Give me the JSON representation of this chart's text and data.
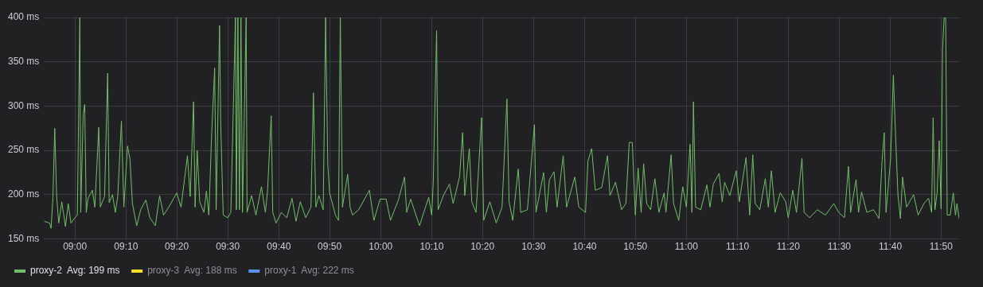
{
  "chart_data": {
    "type": "line",
    "legend": "bottom left",
    "grid": true,
    "marker": "none",
    "line_style": "solid",
    "xlim": [
      8.899,
      11.892
    ],
    "ylim": [
      150,
      400
    ],
    "xticks": [
      {
        "value": 9,
        "label": "09:00"
      },
      {
        "value": 9.167,
        "label": "09:10"
      },
      {
        "value": 9.333,
        "label": "09:20"
      },
      {
        "value": 9.5,
        "label": "09:30"
      },
      {
        "value": 9.667,
        "label": "09:40"
      },
      {
        "value": 9.833,
        "label": "09:50"
      },
      {
        "value": 10,
        "label": "10:00"
      },
      {
        "value": 10.167,
        "label": "10:10"
      },
      {
        "value": 10.333,
        "label": "10:20"
      },
      {
        "value": 10.5,
        "label": "10:30"
      },
      {
        "value": 10.667,
        "label": "10:40"
      },
      {
        "value": 10.833,
        "label": "10:50"
      },
      {
        "value": 11,
        "label": "11:00"
      },
      {
        "value": 11.167,
        "label": "11:10"
      },
      {
        "value": 11.333,
        "label": "11:20"
      },
      {
        "value": 11.5,
        "label": "11:30"
      },
      {
        "value": 11.667,
        "label": "11:40"
      },
      {
        "value": 11.833,
        "label": "11:50"
      }
    ],
    "yticks": [
      {
        "value": 150,
        "label": "150 ms"
      },
      {
        "value": 200,
        "label": "200 ms"
      },
      {
        "value": 250,
        "label": "250 ms"
      },
      {
        "value": 300,
        "label": "300 ms"
      },
      {
        "value": 350,
        "label": "350 ms"
      },
      {
        "value": 400,
        "label": "400 ms"
      }
    ],
    "series": [
      {
        "name": "proxy-2  Avg: 199 ms",
        "color": "#73bf69",
        "x": [
          8.899,
          8.917,
          8.922,
          8.928,
          8.934,
          8.94,
          8.947,
          8.957,
          8.969,
          8.978,
          8.987,
          9,
          9.008,
          9.016,
          9.019,
          9.027,
          9.032,
          9.037,
          9.043,
          9.057,
          9.065,
          9.078,
          9.083,
          9.097,
          9.107,
          9.112,
          9.123,
          9.132,
          9.14,
          9.152,
          9.16,
          9.172,
          9.18,
          9.188,
          9.202,
          9.215,
          9.232,
          9.245,
          9.263,
          9.277,
          9.29,
          9.307,
          9.333,
          9.347,
          9.368,
          9.377,
          9.388,
          9.393,
          9.4,
          9.408,
          9.422,
          9.43,
          9.438,
          9.447,
          9.457,
          9.462,
          9.473,
          9.477,
          9.485,
          9.5,
          9.51,
          9.525,
          9.528,
          9.533,
          9.538,
          9.543,
          9.548,
          9.56,
          9.563,
          9.578,
          9.592,
          9.61,
          9.623,
          9.63,
          9.642,
          9.647,
          9.658,
          9.675,
          9.693,
          9.71,
          9.723,
          9.737,
          9.755,
          9.772,
          9.78,
          9.788,
          9.798,
          9.812,
          9.82,
          9.827,
          9.833,
          9.852,
          9.862,
          9.868,
          9.875,
          9.892,
          9.9,
          9.908,
          9.928,
          9.963,
          9.978,
          9.998,
          10.018,
          10.032,
          10.058,
          10.078,
          10.085,
          10.098,
          10.127,
          10.157,
          10.167,
          10.172,
          10.183,
          10.188,
          10.205,
          10.225,
          10.237,
          10.258,
          10.268,
          10.275,
          10.29,
          10.298,
          10.312,
          10.33,
          10.337,
          10.357,
          10.378,
          10.397,
          10.413,
          10.42,
          10.432,
          10.45,
          10.458,
          10.48,
          10.503,
          10.508,
          10.533,
          10.542,
          10.552,
          10.567,
          10.577,
          10.597,
          10.608,
          10.635,
          10.648,
          10.67,
          10.678,
          10.69,
          10.702,
          10.723,
          10.742,
          10.75,
          10.768,
          10.788,
          10.802,
          10.813,
          10.823,
          10.833,
          10.842,
          10.852,
          10.86,
          10.87,
          10.883,
          10.897,
          10.91,
          10.927,
          10.933,
          10.95,
          10.958,
          10.975,
          10.988,
          11,
          11.012,
          11.018,
          11.023,
          11.03,
          11.047,
          11.067,
          11.077,
          11.088,
          11.107,
          11.117,
          11.125,
          11.142,
          11.163,
          11.173,
          11.195,
          11.207,
          11.217,
          11.225,
          11.24,
          11.258,
          11.268,
          11.278,
          11.29,
          11.307,
          11.325,
          11.333,
          11.348,
          11.36,
          11.378,
          11.385,
          11.403,
          11.428,
          11.455,
          11.482,
          11.498,
          11.517,
          11.53,
          11.537,
          11.555,
          11.563,
          11.573,
          11.59,
          11.612,
          11.63,
          11.64,
          11.647,
          11.653,
          11.668,
          11.677,
          11.685,
          11.692,
          11.7,
          11.707,
          11.72,
          11.743,
          11.758,
          11.777,
          11.792,
          11.802,
          11.807,
          11.813,
          11.82,
          11.827,
          11.833,
          11.838,
          11.843,
          11.848,
          11.853,
          11.863,
          11.873,
          11.88,
          11.885,
          11.892
        ],
        "values": [
          170,
          168,
          162,
          197,
          275,
          199,
          168,
          192,
          164,
          190,
          168,
          174,
          177,
          400,
          180,
          291,
          302,
          180,
          196,
          205,
          186,
          276,
          186,
          198,
          337,
          191,
          200,
          180,
          198,
          283,
          186,
          255,
          240,
          190,
          165,
          183,
          194,
          174,
          165,
          199,
          177,
          186,
          202,
          186,
          244,
          198,
          305,
          186,
          250,
          192,
          180,
          204,
          177,
          267,
          343,
          183,
          391,
          277,
          177,
          174,
          180,
          400,
          183,
          400,
          183,
          400,
          180,
          400,
          180,
          199,
          177,
          209,
          180,
          204,
          289,
          180,
          168,
          180,
          174,
          196,
          170,
          192,
          174,
          186,
          315,
          186,
          199,
          183,
          400,
          235,
          202,
          177,
          171,
          400,
          186,
          223,
          186,
          177,
          183,
          205,
          171,
          195,
          195,
          171,
          194,
          220,
          180,
          195,
          165,
          197,
          177,
          214,
          385,
          183,
          199,
          212,
          190,
          220,
          270,
          199,
          252,
          192,
          180,
          287,
          171,
          192,
          168,
          186,
          308,
          192,
          171,
          229,
          180,
          183,
          279,
          180,
          225,
          180,
          217,
          226,
          186,
          244,
          186,
          220,
          186,
          180,
          238,
          252,
          205,
          208,
          244,
          199,
          214,
          183,
          190,
          259,
          259,
          177,
          230,
          180,
          235,
          190,
          183,
          218,
          180,
          202,
          180,
          245,
          190,
          171,
          209,
          186,
          257,
          180,
          305,
          186,
          183,
          211,
          186,
          212,
          224,
          192,
          214,
          199,
          227,
          192,
          242,
          177,
          245,
          190,
          183,
          218,
          186,
          227,
          180,
          202,
          192,
          174,
          205,
          180,
          241,
          180,
          174,
          183,
          177,
          190,
          180,
          174,
          232,
          180,
          217,
          180,
          203,
          180,
          183,
          173,
          238,
          270,
          180,
          241,
          335,
          259,
          199,
          173,
          220,
          186,
          200,
          177,
          190,
          196,
          180,
          287,
          183,
          202,
          261,
          184,
          366,
          400,
          400,
          177,
          177,
          202,
          177,
          190,
          173
        ]
      },
      {
        "name": "proxy-3  Avg: 188 ms",
        "color": "#fade2a"
      },
      {
        "name": "proxy-1  Avg: 222 ms",
        "color": "#5794f2"
      }
    ]
  }
}
